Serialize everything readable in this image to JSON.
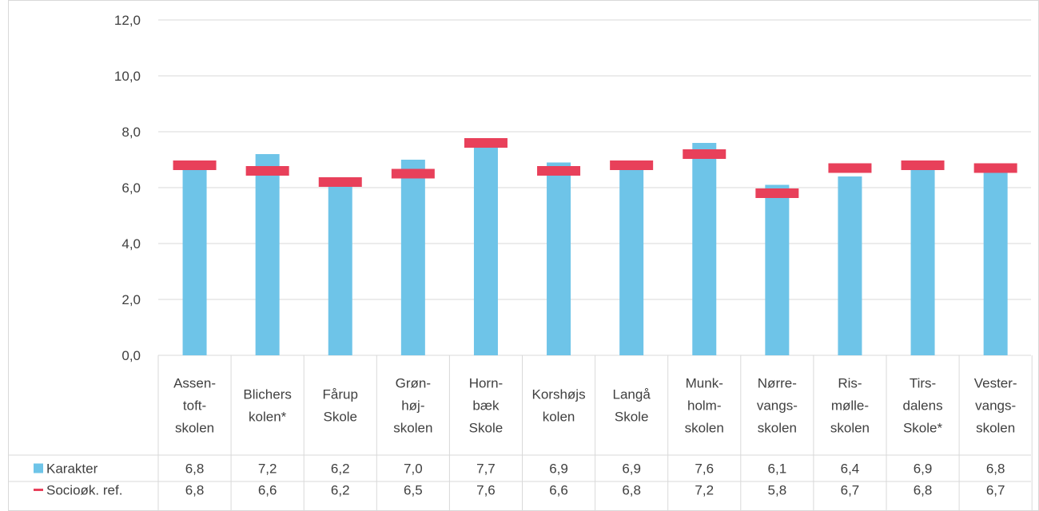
{
  "chart_data": {
    "type": "bar",
    "categories": [
      [
        "Assen-",
        "toft-",
        "skolen"
      ],
      [
        "Blichers",
        "kolen*"
      ],
      [
        "Fårup",
        "Skole"
      ],
      [
        "Grøn-",
        "høj-",
        "skolen"
      ],
      [
        "Horn-",
        "bæk",
        "Skole"
      ],
      [
        "Korshøjs",
        "kolen"
      ],
      [
        "Langå",
        "Skole"
      ],
      [
        "Munk-",
        "holm-",
        "skolen"
      ],
      [
        "Nørre-",
        "vangs-",
        "skolen"
      ],
      [
        "Ris-",
        "mølle-",
        "skolen"
      ],
      [
        "Tirs-",
        "dalens",
        "Skole*"
      ],
      [
        "Vester-",
        "vangs-",
        "skolen"
      ]
    ],
    "series": [
      {
        "name": "Karakter",
        "type": "bar",
        "color": "#6ec4e8",
        "values": [
          6.8,
          7.2,
          6.2,
          7.0,
          7.7,
          6.9,
          6.9,
          7.6,
          6.1,
          6.4,
          6.9,
          6.8
        ],
        "labels": [
          "6,8",
          "7,2",
          "6,2",
          "7,0",
          "7,7",
          "6,9",
          "6,9",
          "7,6",
          "6,1",
          "6,4",
          "6,9",
          "6,8"
        ]
      },
      {
        "name": "Socioøk. ref.",
        "type": "marker",
        "color": "#e8405a",
        "values": [
          6.8,
          6.6,
          6.2,
          6.5,
          7.6,
          6.6,
          6.8,
          7.2,
          5.8,
          6.7,
          6.8,
          6.7
        ],
        "labels": [
          "6,8",
          "6,6",
          "6,2",
          "6,5",
          "7,6",
          "6,6",
          "6,8",
          "7,2",
          "5,8",
          "6,7",
          "6,8",
          "6,7"
        ]
      }
    ],
    "ylim": [
      0,
      12
    ],
    "yticks": [
      "0,0",
      "2,0",
      "4,0",
      "6,0",
      "8,0",
      "10,0",
      "12,0"
    ],
    "grid": true,
    "legend": "data-table",
    "title": "",
    "xlabel": "",
    "ylabel": ""
  }
}
